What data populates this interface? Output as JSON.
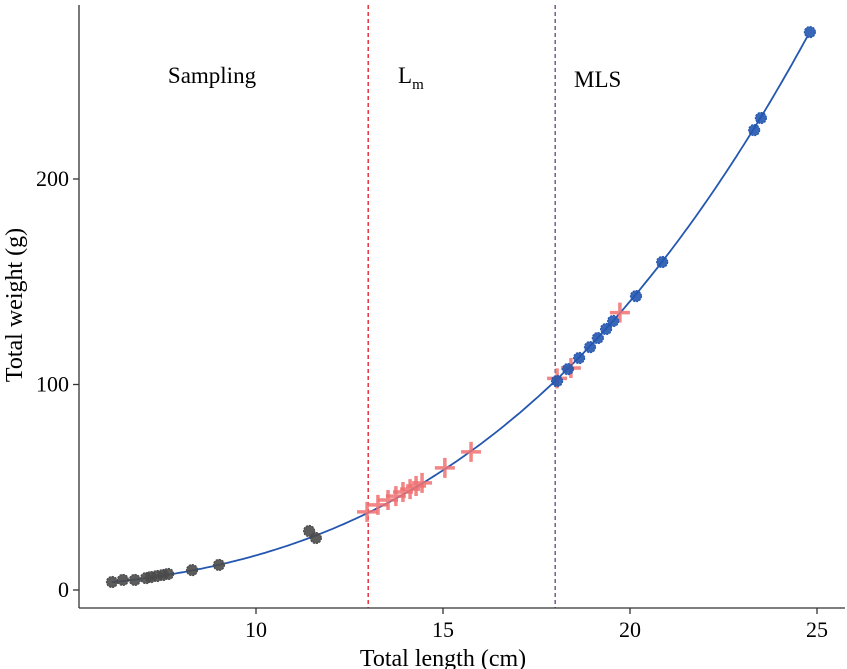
{
  "chart_data": {
    "type": "scatter",
    "title": "",
    "xlabel": "Total length (cm)",
    "ylabel": "Total weight (g)",
    "xlim": [
      5.3,
      25.7
    ],
    "ylim": [
      -8.8,
      284
    ],
    "x_ticks": [
      10,
      15,
      20,
      25
    ],
    "y_ticks": [
      0,
      100,
      200
    ],
    "grid": false,
    "legend": "none",
    "series": [
      {
        "marker": "circle",
        "color": "#4a4a4a",
        "points": [
          [
            6.15,
            3.9
          ],
          [
            6.44,
            4.9
          ],
          [
            6.76,
            4.9
          ],
          [
            7.06,
            5.8
          ],
          [
            7.19,
            6.3
          ],
          [
            7.35,
            6.8
          ],
          [
            7.51,
            7.3
          ],
          [
            7.65,
            7.8
          ],
          [
            8.29,
            9.7
          ],
          [
            9.01,
            12.2
          ],
          [
            11.42,
            28.7
          ],
          [
            11.6,
            25.3
          ]
        ]
      },
      {
        "marker": "cross",
        "color": "#f07070",
        "points": [
          [
            12.97,
            38
          ],
          [
            13.26,
            41.4
          ],
          [
            13.53,
            43.8
          ],
          [
            13.74,
            45.7
          ],
          [
            13.93,
            47.7
          ],
          [
            14.12,
            49.1
          ],
          [
            14.28,
            50.6
          ],
          [
            14.44,
            52.1
          ],
          [
            15.05,
            59.4
          ],
          [
            15.75,
            67.2
          ],
          [
            18.05,
            103
          ],
          [
            18.42,
            108
          ],
          [
            19.73,
            135
          ]
        ]
      },
      {
        "marker": "circle",
        "color": "#2457b0",
        "points": [
          [
            18.05,
            101.7
          ],
          [
            18.34,
            107.5
          ],
          [
            18.64,
            112.9
          ],
          [
            18.93,
            118.2
          ],
          [
            19.14,
            122.6
          ],
          [
            19.36,
            127
          ],
          [
            19.55,
            130.9
          ],
          [
            20.16,
            143
          ],
          [
            20.86,
            159.6
          ],
          [
            23.32,
            223.8
          ],
          [
            23.5,
            229.7
          ],
          [
            24.81,
            271.5
          ]
        ]
      }
    ],
    "fit_line": {
      "color": "#2457b0",
      "x_range": [
        6.15,
        24.81
      ]
    },
    "reference_lines": [
      {
        "x": 13,
        "color": "#e8323c",
        "style": "dashed"
      },
      {
        "x": 18,
        "color": "#7a5a8a",
        "style": "dashed"
      }
    ],
    "annotations": [
      {
        "text": "Sampling",
        "x": 8.2,
        "y": 250
      },
      {
        "text": "L",
        "sub": "m",
        "x": 13.9,
        "y": 250
      },
      {
        "text": "MLS",
        "x": 19.0,
        "y": 250
      }
    ]
  }
}
